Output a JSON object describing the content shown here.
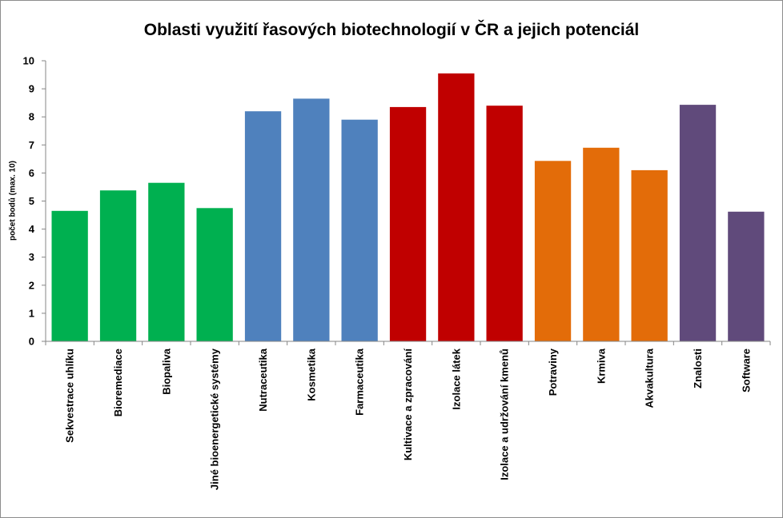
{
  "chart_data": {
    "type": "bar",
    "title": "Oblasti využití řasových biotechnologií v ČR a jejich potenciál",
    "xlabel": "",
    "ylabel": "počet bodů (max. 10)",
    "ylim": [
      0,
      10
    ],
    "yticks": [
      "0",
      "1",
      "2",
      "3",
      "4",
      "5",
      "6",
      "7",
      "8",
      "9",
      "10"
    ],
    "grid": false,
    "legend": "none",
    "categories": [
      "Sekvestrace uhlíku",
      "Bioremediace",
      "Biopaliva",
      "Jiné bioenergetické systémy",
      "Nutraceutika",
      "Kosmetika",
      "Farmaceutika",
      "Kultivace a zpracování",
      "Izolace látek",
      "Izolace a udržování kmenů",
      "Potraviny",
      "Krmiva",
      "Akvakultura",
      "Znalosti",
      "Software"
    ],
    "values": [
      4.65,
      5.38,
      5.65,
      4.75,
      8.2,
      8.65,
      7.9,
      8.35,
      9.55,
      8.4,
      6.43,
      6.9,
      6.1,
      8.43,
      4.62
    ],
    "bar_colors": [
      "#00b050",
      "#00b050",
      "#00b050",
      "#00b050",
      "#4f81bd",
      "#4f81bd",
      "#4f81bd",
      "#c00000",
      "#c00000",
      "#c00000",
      "#e36c09",
      "#e36c09",
      "#e36c09",
      "#604a7b",
      "#604a7b"
    ]
  }
}
